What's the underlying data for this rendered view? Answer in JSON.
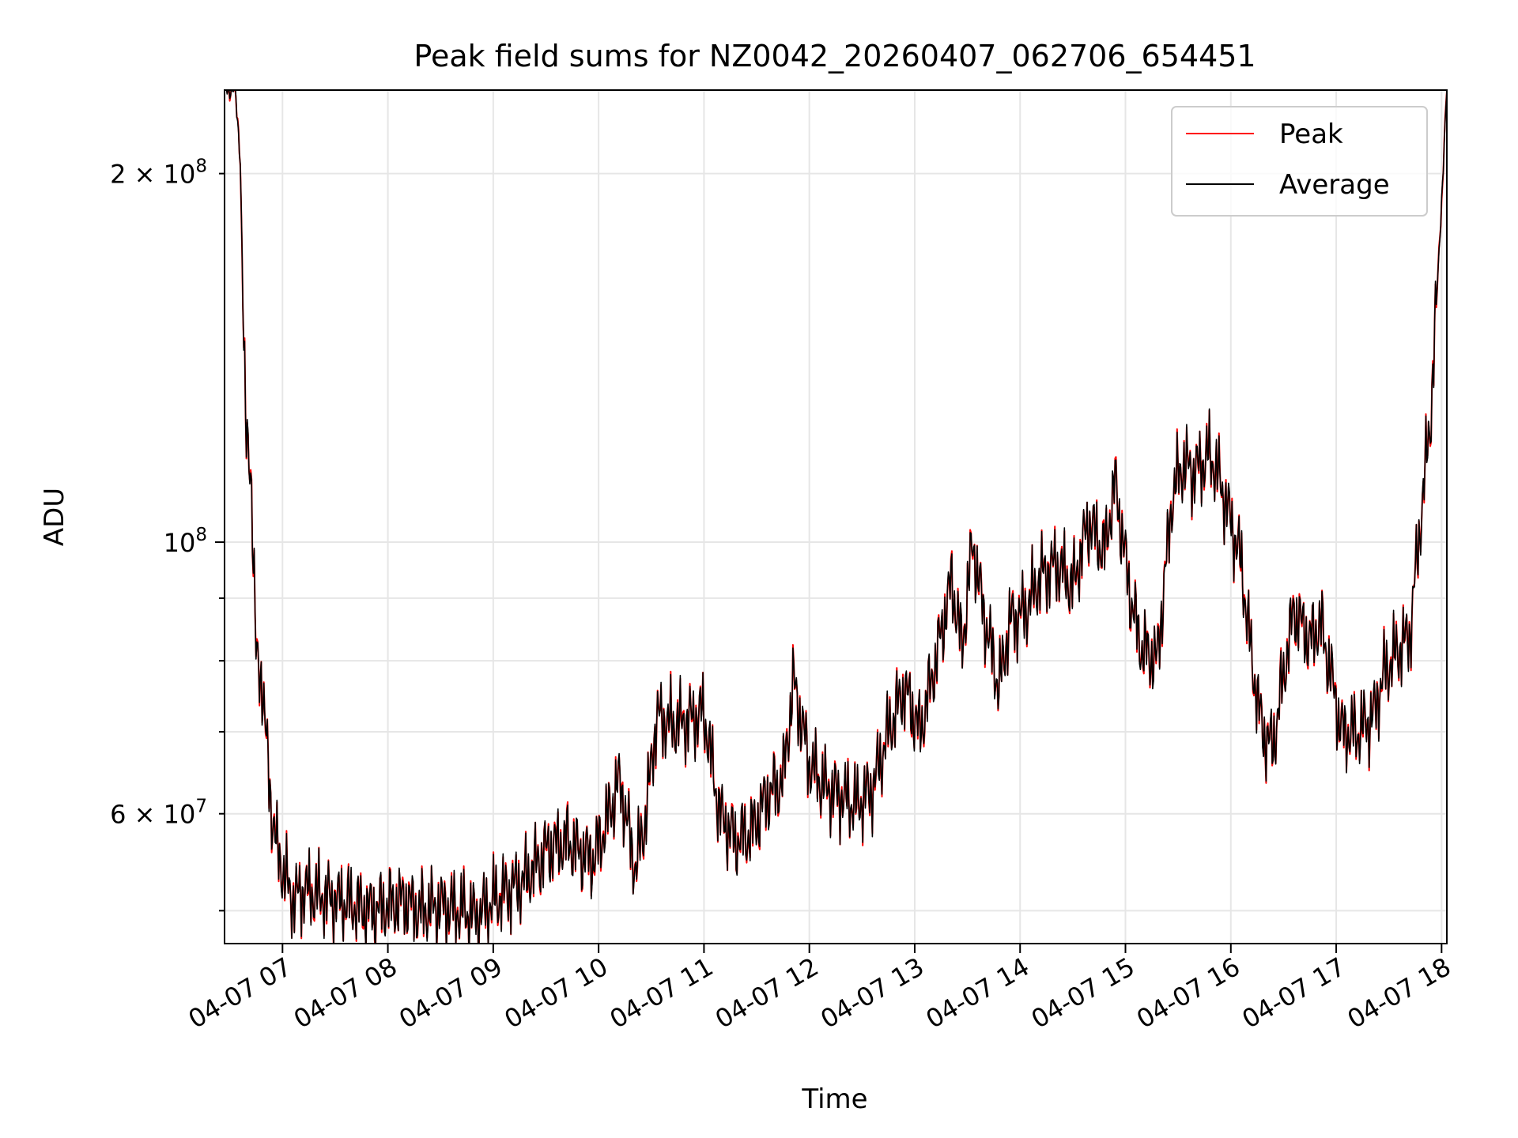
{
  "chart_data": {
    "type": "line",
    "title": "Peak field sums for NZ0042_20260407_062706_654451",
    "xlabel": "Time",
    "ylabel": "ADU",
    "yscale": "log",
    "xlim": [
      6.45,
      18.05
    ],
    "ylim": [
      47000000,
      234000000
    ],
    "grid": true,
    "legend_position": "top-right",
    "x_unit": "hours since 2026-04-07 00:00",
    "x_ticks": [
      {
        "x": 7,
        "label": "04-07 07"
      },
      {
        "x": 8,
        "label": "04-07 08"
      },
      {
        "x": 9,
        "label": "04-07 09"
      },
      {
        "x": 10,
        "label": "04-07 10"
      },
      {
        "x": 11,
        "label": "04-07 11"
      },
      {
        "x": 12,
        "label": "04-07 12"
      },
      {
        "x": 13,
        "label": "04-07 13"
      },
      {
        "x": 14,
        "label": "04-07 14"
      },
      {
        "x": 15,
        "label": "04-07 15"
      },
      {
        "x": 16,
        "label": "04-07 16"
      },
      {
        "x": 17,
        "label": "04-07 17"
      },
      {
        "x": 18,
        "label": "04-07 18"
      }
    ],
    "y_ticks_major": [
      {
        "y": 100000000,
        "base": "10",
        "exp": "8"
      }
    ],
    "y_ticks_minor_labeled": [
      {
        "y": 60000000,
        "mantissa": "6",
        "base": "10",
        "exp": "7"
      },
      {
        "y": 200000000,
        "mantissa": "2",
        "base": "10",
        "exp": "8"
      }
    ],
    "y_ticks_minor": [
      50000000,
      70000000,
      80000000,
      90000000
    ],
    "series": [
      {
        "name": "Peak",
        "color": "#ff0000",
        "offset": 0.006
      },
      {
        "name": "Average",
        "color": "#000000",
        "offset": 0.0
      }
    ],
    "x": [
      6.45,
      6.55,
      6.6,
      6.65,
      6.7,
      6.75,
      6.8,
      6.85,
      6.9,
      6.95,
      7.0,
      7.1,
      7.2,
      7.35,
      7.5,
      7.7,
      7.85,
      8.0,
      8.15,
      8.3,
      8.5,
      8.7,
      8.85,
      9.0,
      9.15,
      9.3,
      9.5,
      9.7,
      9.8,
      9.95,
      10.1,
      10.2,
      10.35,
      10.45,
      10.55,
      10.7,
      10.85,
      11.0,
      11.15,
      11.3,
      11.45,
      11.6,
      11.75,
      11.85,
      12.0,
      12.15,
      12.3,
      12.45,
      12.6,
      12.75,
      12.9,
      13.05,
      13.2,
      13.35,
      13.45,
      13.55,
      13.65,
      13.8,
      13.9,
      14.05,
      14.2,
      14.35,
      14.5,
      14.65,
      14.8,
      14.9,
      15.05,
      15.15,
      15.3,
      15.45,
      15.55,
      15.65,
      15.8,
      15.9,
      16.0,
      16.1,
      16.2,
      16.3,
      16.4,
      16.5,
      16.6,
      16.75,
      16.85,
      16.95,
      17.05,
      17.2,
      17.35,
      17.45,
      17.6,
      17.7,
      17.8,
      17.9,
      18.0,
      18.05
    ],
    "values": [
      234000000,
      234000000,
      205000000,
      122000000,
      116000000,
      80000000,
      78000000,
      68000000,
      60000000,
      56000000,
      54000000,
      51000000,
      52000000,
      51500000,
      51000000,
      50500000,
      50000000,
      50500000,
      51000000,
      50000000,
      50500000,
      50000000,
      49500000,
      51000000,
      52000000,
      53000000,
      56000000,
      57000000,
      56000000,
      55000000,
      60000000,
      64000000,
      54000000,
      60000000,
      72000000,
      71000000,
      71500000,
      72500000,
      60000000,
      57000000,
      58000000,
      62000000,
      64000000,
      77000000,
      66000000,
      63000000,
      62000000,
      61000000,
      63000000,
      70000000,
      76000000,
      70000000,
      80000000,
      93000000,
      82000000,
      100000000,
      88000000,
      76000000,
      86000000,
      88000000,
      94000000,
      96000000,
      92000000,
      104000000,
      98000000,
      112000000,
      90000000,
      82000000,
      80000000,
      110000000,
      116000000,
      114000000,
      118000000,
      112000000,
      104000000,
      96000000,
      80000000,
      70000000,
      68000000,
      78000000,
      88000000,
      83000000,
      86000000,
      78000000,
      70000000,
      70000000,
      72000000,
      78000000,
      82000000,
      84000000,
      104000000,
      128000000,
      190000000,
      234000000
    ]
  }
}
